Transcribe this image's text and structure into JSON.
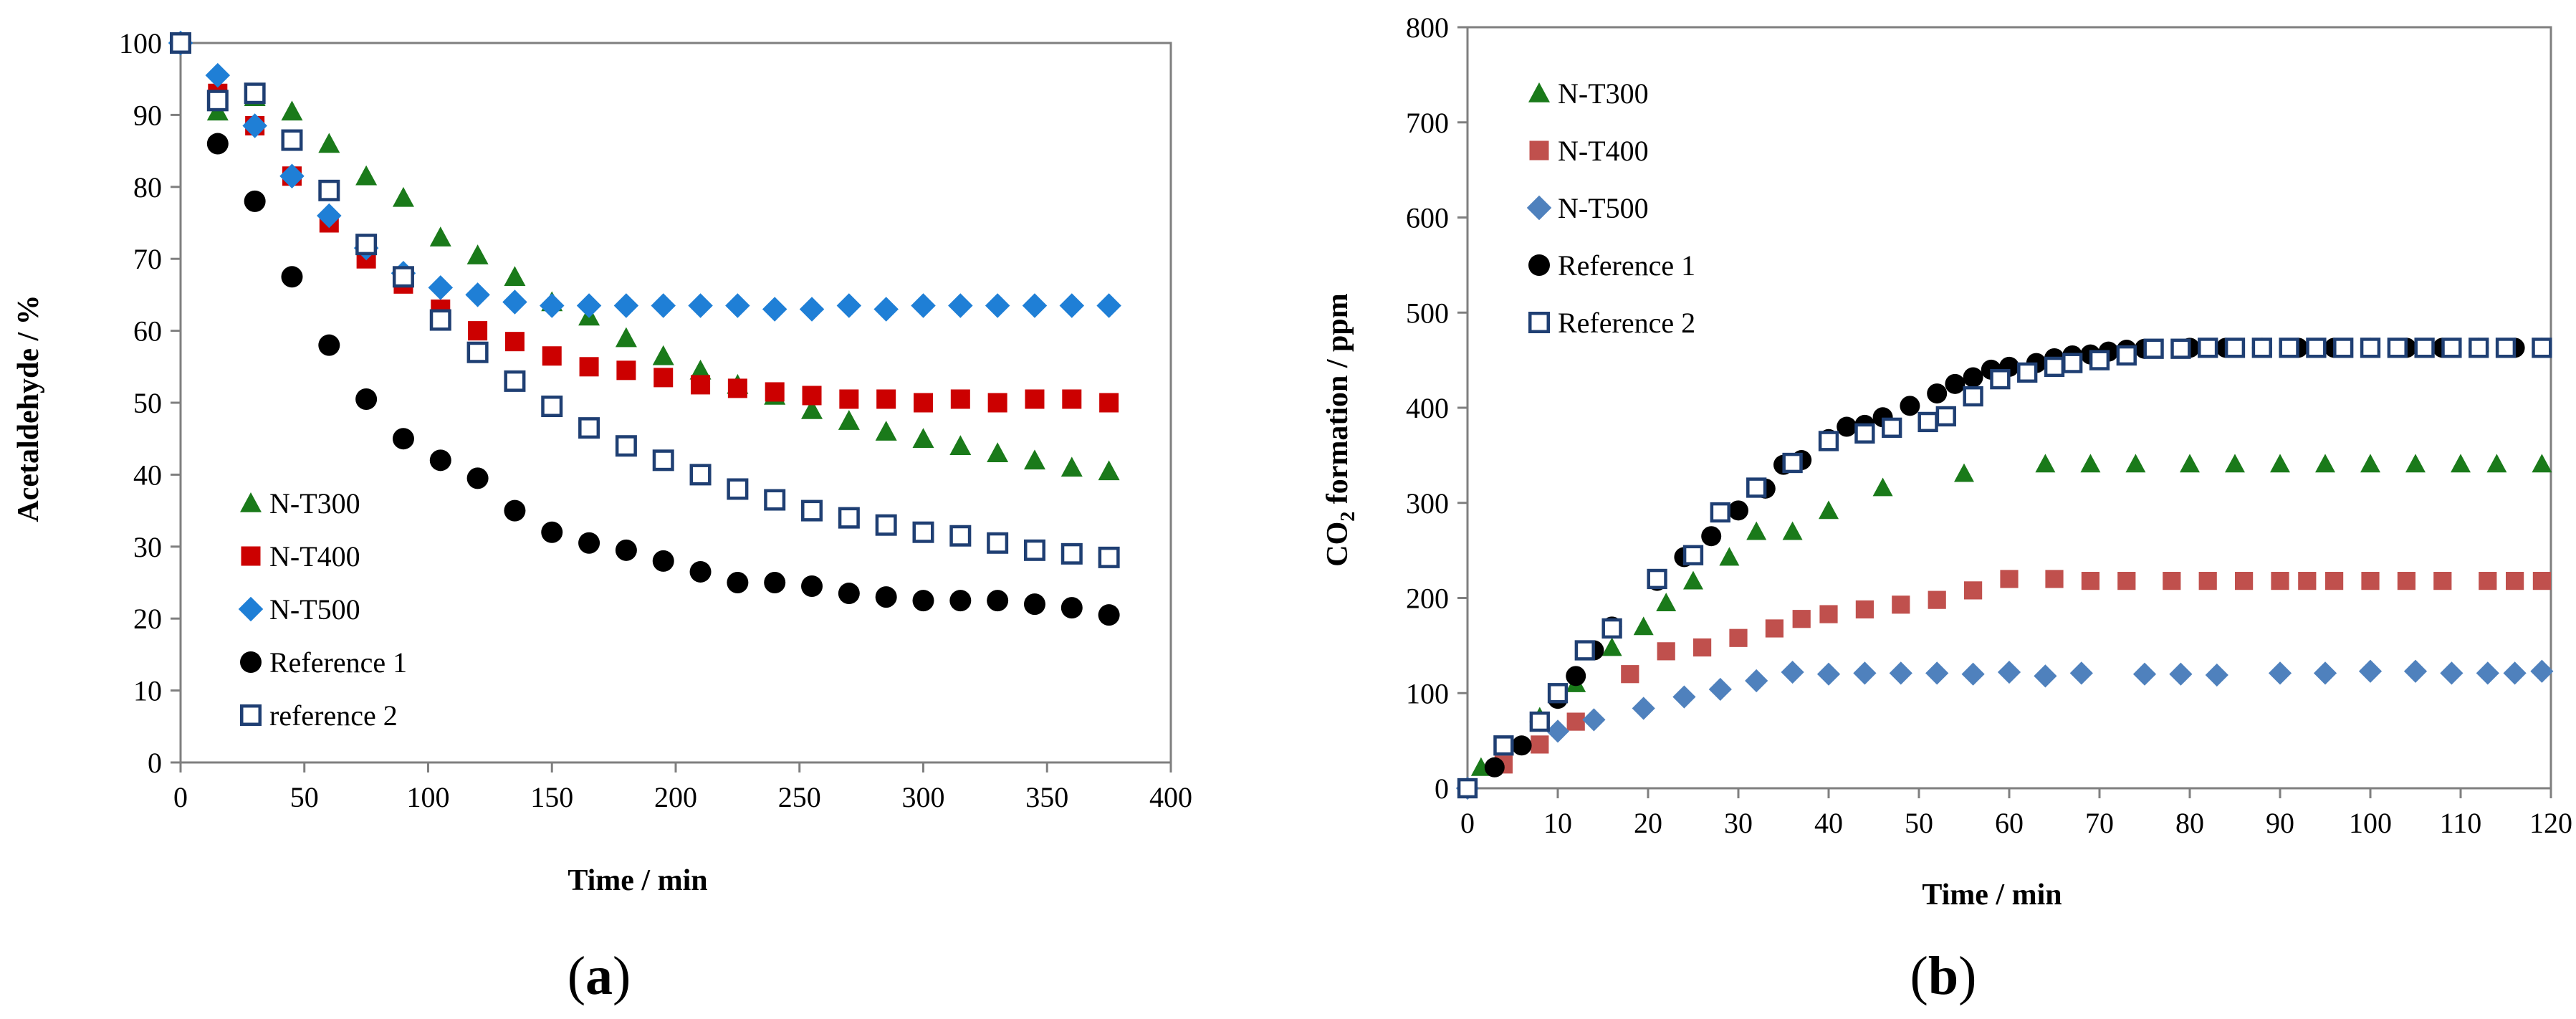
{
  "colors": {
    "N-T300": "#1a7a1a",
    "N-T400": "#cc0000",
    "N-T500": "#1f7fd6",
    "Reference 1": "#000000",
    "Reference 2": "#1f3f73",
    "N-T400_b": "#c0504d",
    "N-T500_b": "#4f81bd",
    "axis": "#7f7f7f"
  },
  "chart_data": [
    {
      "type": "scatter",
      "panel_label": "(a)",
      "panel_letter": "a",
      "xlabel": "Time / min",
      "ylabel": "Acetaldehyde / %",
      "xlim": [
        0,
        400
      ],
      "ylim": [
        0,
        100
      ],
      "xticks": [
        "0",
        "50",
        "100",
        "150",
        "200",
        "250",
        "300",
        "350",
        "400"
      ],
      "yticks": [
        "0",
        "10",
        "20",
        "30",
        "40",
        "50",
        "60",
        "70",
        "80",
        "90",
        "100"
      ],
      "legend_position": "bottom-left",
      "series": [
        {
          "name": "N-T300",
          "marker": "triangle",
          "x": [
            0,
            15,
            30,
            45,
            60,
            75,
            90,
            105,
            120,
            135,
            150,
            165,
            180,
            195,
            210,
            225,
            240,
            255,
            270,
            285,
            300,
            315,
            330,
            345,
            360,
            375
          ],
          "y": [
            100,
            90.5,
            92.5,
            90.5,
            86,
            81.5,
            78.5,
            73,
            70.5,
            67.5,
            64,
            62,
            59,
            56.5,
            54.5,
            52.5,
            51,
            49,
            47.5,
            46,
            45,
            44,
            43,
            42,
            41,
            40.5
          ]
        },
        {
          "name": "N-T400",
          "marker": "square",
          "x": [
            0,
            15,
            30,
            45,
            60,
            75,
            90,
            105,
            120,
            135,
            150,
            165,
            180,
            195,
            210,
            225,
            240,
            255,
            270,
            285,
            300,
            315,
            330,
            345,
            360,
            375
          ],
          "y": [
            100,
            93,
            88.5,
            81.5,
            75,
            70,
            66.5,
            63,
            60,
            58.5,
            56.5,
            55,
            54.5,
            53.5,
            52.5,
            52,
            51.5,
            51,
            50.5,
            50.5,
            50,
            50.5,
            50,
            50.5,
            50.5,
            50
          ]
        },
        {
          "name": "N-T500",
          "marker": "diamond",
          "x": [
            0,
            15,
            30,
            45,
            60,
            75,
            90,
            105,
            120,
            135,
            150,
            165,
            180,
            195,
            210,
            225,
            240,
            255,
            270,
            285,
            300,
            315,
            330,
            345,
            360,
            375
          ],
          "y": [
            100,
            95.5,
            88.5,
            81.5,
            76,
            71.5,
            68,
            66,
            65,
            64,
            63.5,
            63.5,
            63.5,
            63.5,
            63.5,
            63.5,
            63,
            63,
            63.5,
            63,
            63.5,
            63.5,
            63.5,
            63.5,
            63.5,
            63.5
          ]
        },
        {
          "name": "Reference 1",
          "marker": "circle",
          "x": [
            0,
            15,
            30,
            45,
            60,
            75,
            90,
            105,
            120,
            135,
            150,
            165,
            180,
            195,
            210,
            225,
            240,
            255,
            270,
            285,
            300,
            315,
            330,
            345,
            360,
            375
          ],
          "y": [
            100,
            86,
            78,
            67.5,
            58,
            50.5,
            45,
            42,
            39.5,
            35,
            32,
            30.5,
            29.5,
            28,
            26.5,
            25,
            25,
            24.5,
            23.5,
            23,
            22.5,
            22.5,
            22.5,
            22,
            21.5,
            20.5
          ]
        },
        {
          "name": "reference 2",
          "marker": "open-square",
          "x": [
            0,
            15,
            30,
            45,
            60,
            75,
            90,
            105,
            120,
            135,
            150,
            165,
            180,
            195,
            210,
            225,
            240,
            255,
            270,
            285,
            300,
            315,
            330,
            345,
            360,
            375
          ],
          "y": [
            100,
            92,
            93,
            86.5,
            79.5,
            72,
            67.5,
            61.5,
            57,
            53,
            49.5,
            46.5,
            44,
            42,
            40,
            38,
            36.5,
            35,
            34,
            33,
            32,
            31.5,
            30.5,
            29.5,
            29,
            28.5
          ]
        }
      ]
    },
    {
      "type": "scatter",
      "panel_label": "(b)",
      "panel_letter": "b",
      "xlabel": "Time / min",
      "ylabel": "CO2 formation / ppm",
      "ylabel_main": "CO",
      "ylabel_sub": "2",
      "ylabel_rest": " formation / ppm",
      "xlim": [
        0,
        120
      ],
      "ylim": [
        0,
        800
      ],
      "xticks": [
        "0",
        "10",
        "20",
        "30",
        "40",
        "50",
        "60",
        "70",
        "80",
        "90",
        "100",
        "110",
        "120"
      ],
      "yticks": [
        "0",
        "100",
        "200",
        "300",
        "400",
        "500",
        "600",
        "700",
        "800"
      ],
      "legend_position": "top-left",
      "series": [
        {
          "name": "N-T300",
          "marker": "triangle",
          "x": [
            0,
            1.5,
            4,
            8,
            12,
            16,
            19.5,
            22,
            25,
            29,
            32,
            36,
            40,
            46,
            55,
            64,
            69,
            74,
            80,
            85,
            90,
            95,
            100,
            105,
            110,
            114,
            119
          ],
          "y": [
            0,
            22,
            45,
            75,
            110,
            148,
            170,
            195,
            218,
            243,
            270,
            270,
            292,
            316,
            331,
            341,
            341,
            341,
            341,
            341,
            341,
            341,
            341,
            341,
            341,
            341,
            341
          ]
        },
        {
          "name": "N-T400",
          "marker": "square",
          "x": [
            0,
            4,
            8,
            12,
            18,
            22,
            26,
            30,
            34,
            37,
            40,
            44,
            48,
            52,
            56,
            60,
            65,
            69,
            73,
            78,
            82,
            86,
            90,
            93,
            96,
            100,
            104,
            108,
            113,
            116,
            119
          ],
          "y": [
            0,
            25,
            46,
            70,
            120,
            144,
            148,
            158,
            168,
            178,
            183,
            188,
            193,
            198,
            208,
            220,
            220,
            218,
            218,
            218,
            218,
            218,
            218,
            218,
            218,
            218,
            218,
            218,
            218,
            218,
            218
          ]
        },
        {
          "name": "N-T500",
          "marker": "diamond",
          "x": [
            0,
            10,
            14,
            19.5,
            24,
            28,
            32,
            36,
            40,
            44,
            48,
            52,
            56,
            60,
            64,
            68,
            75,
            79,
            83,
            90,
            95,
            100,
            105,
            109,
            113,
            116,
            119
          ],
          "y": [
            0,
            60,
            72,
            84,
            96,
            104,
            113,
            122,
            120,
            121,
            121,
            121,
            120,
            122,
            118,
            121,
            120,
            120,
            119,
            121,
            121,
            123,
            123,
            121,
            121,
            121,
            123
          ]
        },
        {
          "name": "Reference 1",
          "marker": "circle",
          "x": [
            0,
            3,
            6,
            8,
            10,
            12,
            14,
            16,
            21,
            24,
            27,
            30,
            33,
            35,
            37,
            40,
            42,
            44,
            46,
            49,
            52,
            54,
            56,
            58,
            60,
            63,
            65,
            67,
            69,
            71,
            73,
            75,
            80,
            84,
            88,
            92,
            96,
            100,
            104,
            108,
            112,
            116,
            119
          ],
          "y": [
            0,
            22,
            45,
            70,
            94,
            118,
            145,
            170,
            218,
            243,
            265,
            292,
            315,
            340,
            345,
            367,
            380,
            382,
            390,
            402,
            415,
            425,
            432,
            440,
            443,
            447,
            452,
            455,
            456,
            459,
            461,
            462,
            463,
            463,
            463,
            463,
            463,
            463,
            463,
            463,
            463,
            463,
            463
          ]
        },
        {
          "name": "Reference 2",
          "marker": "open-square",
          "x": [
            0,
            4,
            8,
            10,
            13,
            16,
            21,
            25,
            28,
            32,
            36,
            40,
            44,
            47,
            51,
            53,
            56,
            59,
            62,
            65,
            67,
            70,
            73,
            76,
            79,
            82,
            85,
            88,
            91,
            94,
            97,
            100,
            103,
            106,
            109,
            112,
            115,
            119
          ],
          "y": [
            0,
            45,
            70,
            100,
            145,
            168,
            220,
            245,
            290,
            316,
            342,
            365,
            373,
            379,
            385,
            391,
            412,
            430,
            437,
            443,
            447,
            450,
            455,
            462,
            462,
            463,
            463,
            463,
            463,
            463,
            463,
            463,
            463,
            463,
            463,
            463,
            463,
            463
          ]
        }
      ]
    }
  ]
}
